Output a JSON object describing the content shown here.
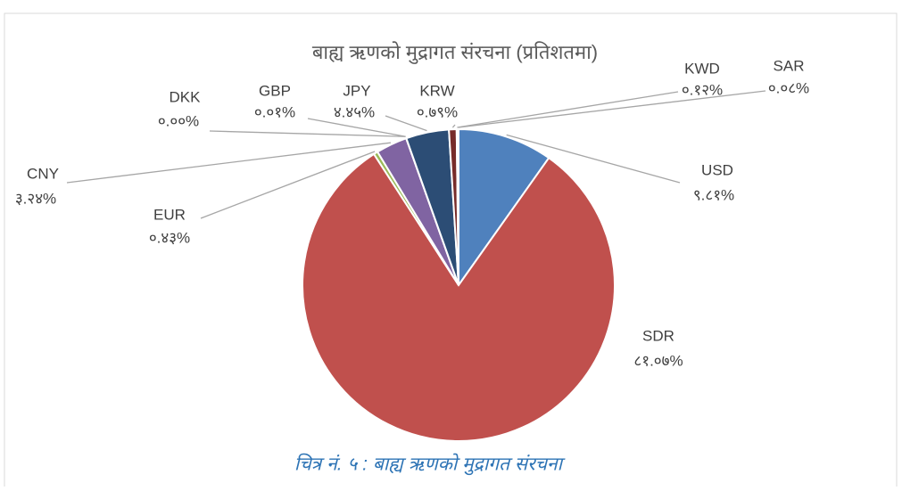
{
  "chart_data": {
    "type": "pie",
    "title": "बाह्य ऋणको मुद्रागत संरचना (प्रतिशतमा)",
    "categories": [
      "USD",
      "SDR",
      "EUR",
      "CNY",
      "DKK",
      "GBP",
      "JPY",
      "KRW",
      "KWD",
      "SAR"
    ],
    "values": [
      9.81,
      81.07,
      0.43,
      3.24,
      0.0,
      0.01,
      4.45,
      0.79,
      0.12,
      0.08
    ],
    "value_labels": [
      "९.८१%",
      "८१.०७%",
      "०.४३%",
      "३.२४%",
      "०.००%",
      "०.०१%",
      "४.४५%",
      "०.७९%",
      "०.१२%",
      "०.०८%"
    ],
    "colors": [
      "#4f81bd",
      "#c0504d",
      "#9bbb59",
      "#8064a2",
      "#4bacc6",
      "#f79646",
      "#2c4d75",
      "#772c2a",
      "#5f7530",
      "#4d3b62"
    ]
  },
  "caption": "चित्र नं. ५ : बाह्य ऋणको मुद्रागत संरचना"
}
